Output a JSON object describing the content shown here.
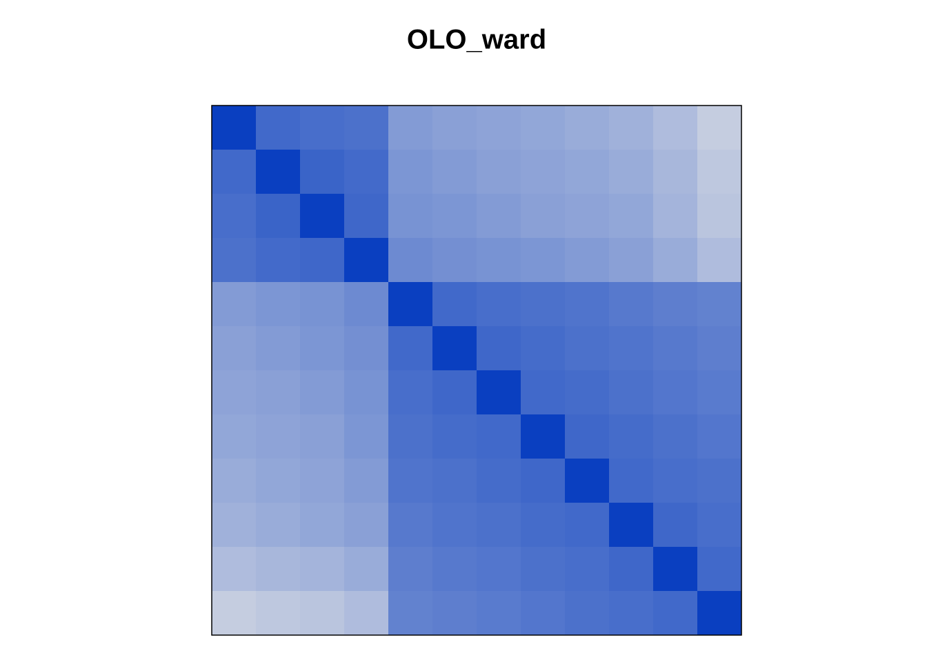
{
  "chart_data": {
    "type": "heatmap",
    "title": "OLO_ward",
    "zlim": [
      0,
      1
    ],
    "colors": [
      "#0a3fc0",
      "#e6e6e6"
    ],
    "values": [
      [
        0,
        0.25,
        0.28,
        0.3,
        0.55,
        0.58,
        0.6,
        0.62,
        0.65,
        0.68,
        0.75,
        0.85
      ],
      [
        0.25,
        0,
        0.22,
        0.26,
        0.52,
        0.55,
        0.58,
        0.6,
        0.62,
        0.65,
        0.72,
        0.82
      ],
      [
        0.28,
        0.22,
        0,
        0.24,
        0.5,
        0.52,
        0.55,
        0.58,
        0.6,
        0.62,
        0.7,
        0.8
      ],
      [
        0.3,
        0.26,
        0.24,
        0,
        0.45,
        0.48,
        0.5,
        0.52,
        0.55,
        0.58,
        0.65,
        0.75
      ],
      [
        0.55,
        0.52,
        0.5,
        0.45,
        0,
        0.25,
        0.28,
        0.3,
        0.32,
        0.35,
        0.38,
        0.4
      ],
      [
        0.58,
        0.55,
        0.52,
        0.48,
        0.25,
        0,
        0.24,
        0.27,
        0.3,
        0.32,
        0.35,
        0.38
      ],
      [
        0.6,
        0.58,
        0.55,
        0.5,
        0.28,
        0.24,
        0,
        0.25,
        0.27,
        0.3,
        0.33,
        0.36
      ],
      [
        0.62,
        0.6,
        0.58,
        0.52,
        0.3,
        0.27,
        0.25,
        0,
        0.24,
        0.27,
        0.3,
        0.33
      ],
      [
        0.65,
        0.62,
        0.6,
        0.55,
        0.32,
        0.3,
        0.27,
        0.24,
        0,
        0.25,
        0.28,
        0.3
      ],
      [
        0.68,
        0.65,
        0.62,
        0.58,
        0.35,
        0.32,
        0.3,
        0.27,
        0.25,
        0,
        0.24,
        0.28
      ],
      [
        0.75,
        0.72,
        0.7,
        0.65,
        0.38,
        0.35,
        0.33,
        0.3,
        0.28,
        0.24,
        0,
        0.25
      ],
      [
        0.85,
        0.82,
        0.8,
        0.75,
        0.4,
        0.38,
        0.36,
        0.33,
        0.3,
        0.28,
        0.25,
        0
      ]
    ]
  }
}
